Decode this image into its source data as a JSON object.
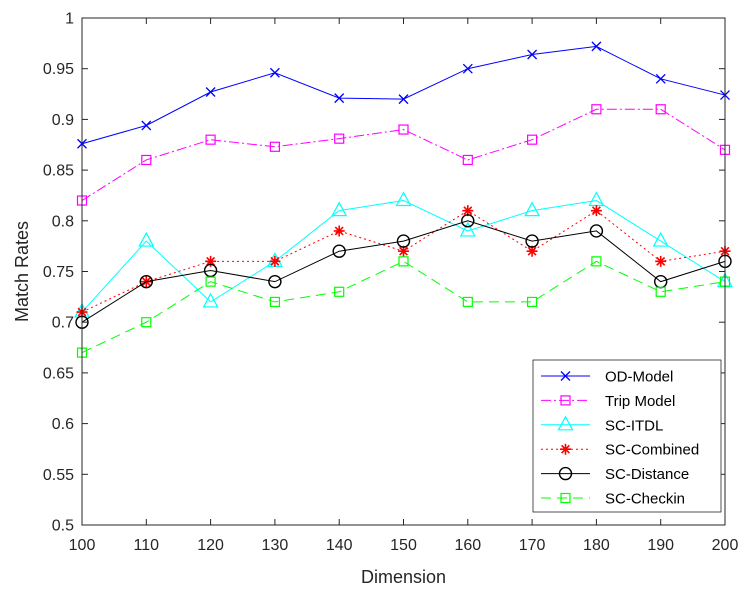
{
  "chart_data": {
    "type": "line",
    "title": "",
    "xlabel": "Dimension",
    "ylabel": "Match Rates",
    "x": [
      100,
      110,
      120,
      130,
      140,
      150,
      160,
      170,
      180,
      190,
      200
    ],
    "xlim": [
      100,
      200
    ],
    "ylim": [
      0.5,
      1
    ],
    "x_ticks": [
      "100",
      "110",
      "120",
      "130",
      "140",
      "150",
      "160",
      "170",
      "180",
      "190",
      "200"
    ],
    "y_ticks": [
      "0.5",
      "0.55",
      "0.6",
      "0.65",
      "0.7",
      "0.75",
      "0.8",
      "0.85",
      "0.9",
      "0.95",
      "1"
    ],
    "grid": false,
    "legend_position": "bottom-right",
    "series": [
      {
        "name": "OD-Model",
        "color": "#0000ff",
        "marker": "x",
        "line_style": "solid",
        "values": [
          0.876,
          0.894,
          0.927,
          0.946,
          0.921,
          0.92,
          0.95,
          0.964,
          0.972,
          0.94,
          0.924
        ]
      },
      {
        "name": "Trip Model",
        "color": "#ff00ff",
        "marker": "square",
        "line_style": "dashdot",
        "values": [
          0.82,
          0.86,
          0.88,
          0.873,
          0.881,
          0.89,
          0.86,
          0.88,
          0.91,
          0.91,
          0.87
        ]
      },
      {
        "name": "SC-ITDL",
        "color": "#00ffff",
        "marker": "triangle",
        "line_style": "solid",
        "values": [
          0.71,
          0.78,
          0.72,
          0.76,
          0.81,
          0.82,
          0.79,
          0.81,
          0.82,
          0.78,
          0.74
        ]
      },
      {
        "name": "SC-Combined",
        "color": "#ff0000",
        "marker": "asterisk",
        "line_style": "dotted",
        "values": [
          0.71,
          0.74,
          0.76,
          0.76,
          0.79,
          0.77,
          0.81,
          0.77,
          0.81,
          0.76,
          0.77
        ]
      },
      {
        "name": "SC-Distance",
        "color": "#000000",
        "marker": "circle",
        "line_style": "solid",
        "values": [
          0.7,
          0.74,
          0.751,
          0.74,
          0.77,
          0.78,
          0.8,
          0.78,
          0.79,
          0.74,
          0.76
        ]
      },
      {
        "name": "SC-Checkin",
        "color": "#00ff00",
        "marker": "square",
        "line_style": "dashed",
        "values": [
          0.67,
          0.7,
          0.74,
          0.72,
          0.73,
          0.76,
          0.72,
          0.72,
          0.76,
          0.73,
          0.74
        ]
      }
    ]
  }
}
